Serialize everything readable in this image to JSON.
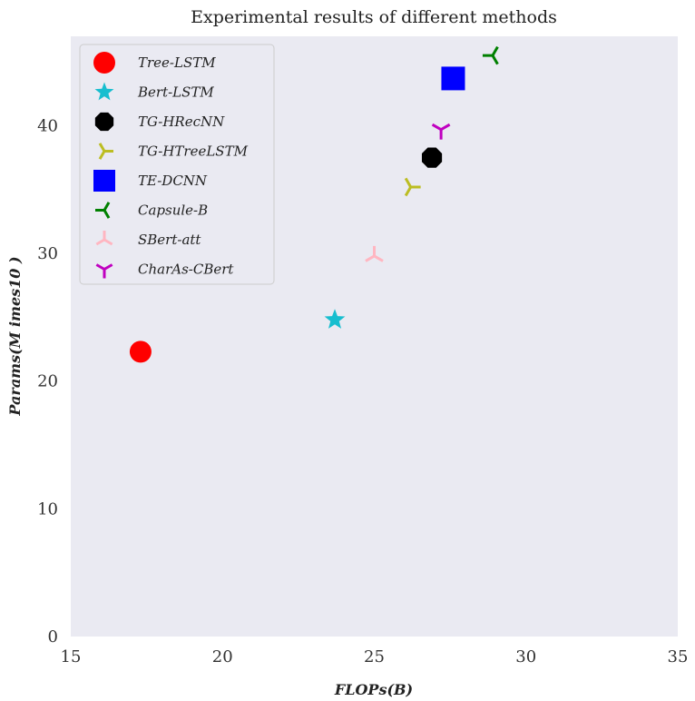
{
  "chart_data": {
    "type": "scatter",
    "title": "Experimental results of different methods",
    "xlabel": "FLOPs(B)",
    "ylabel": "Params(M imes10 )",
    "xlim": [
      15,
      35
    ],
    "ylim": [
      0,
      47
    ],
    "x_ticks": [
      "15",
      "20",
      "25",
      "30",
      "35"
    ],
    "y_ticks": [
      "0",
      "10",
      "20",
      "30",
      "40"
    ],
    "grid": false,
    "background": "#eaeaf2",
    "legend_position": "upper-left",
    "series": [
      {
        "name": "Tree-LSTM",
        "x": 17.3,
        "y": 22.3,
        "marker": "circle",
        "color": "#ff0000"
      },
      {
        "name": "Bert-LSTM",
        "x": 23.7,
        "y": 24.8,
        "marker": "star",
        "color": "#17becf"
      },
      {
        "name": "TG-HRecNN",
        "x": 26.9,
        "y": 37.5,
        "marker": "octagon",
        "color": "#000000"
      },
      {
        "name": "TG-HTreeLSTM",
        "x": 26.2,
        "y": 35.2,
        "marker": "tri-right",
        "color": "#bcbd22"
      },
      {
        "name": "TE-DCNN",
        "x": 27.6,
        "y": 43.7,
        "marker": "square",
        "color": "#0000ff"
      },
      {
        "name": "Capsule-B",
        "x": 28.9,
        "y": 45.5,
        "marker": "tri-left",
        "color": "#008000"
      },
      {
        "name": "SBert-att",
        "x": 25.0,
        "y": 29.8,
        "marker": "tri-up",
        "color": "#ffb6c1"
      },
      {
        "name": "CharAs-CBert",
        "x": 27.2,
        "y": 39.7,
        "marker": "tri-down",
        "color": "#c000c0"
      }
    ]
  }
}
